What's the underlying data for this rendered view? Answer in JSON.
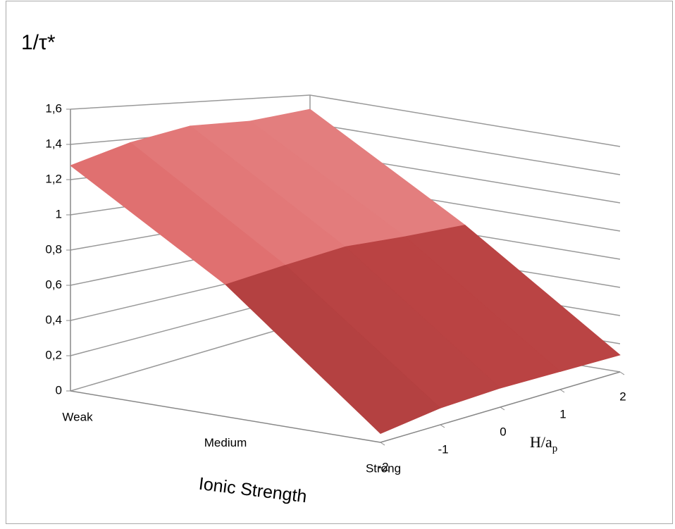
{
  "chart_data": {
    "type": "surface3d",
    "title": "1/τ*",
    "x_label": "Ionic Strength",
    "depth_label": "H/a",
    "depth_label_sub": "p",
    "categories": [
      "Weak",
      "Medium",
      "Strong"
    ],
    "depth_categories": [
      -2,
      -1,
      0,
      1,
      2
    ],
    "z": [
      [
        1.28,
        0.75,
        0.05
      ],
      [
        1.38,
        0.8,
        0.1
      ],
      [
        1.45,
        0.85,
        0.12
      ],
      [
        1.45,
        0.85,
        0.12
      ],
      [
        1.5,
        0.86,
        0.12
      ]
    ],
    "zlim": [
      0,
      1.6
    ],
    "zticks": [
      0,
      {
        "value": 0.2,
        "label": "0,2"
      },
      {
        "value": 0.4,
        "label": "0,4"
      },
      {
        "value": 0.6,
        "label": "0,6"
      },
      {
        "value": 0.8,
        "label": "0,8"
      },
      1,
      {
        "value": 1.2,
        "label": "1,2"
      },
      {
        "value": 1.4,
        "label": "1,4"
      },
      {
        "value": 1.6,
        "label": "1,6"
      }
    ],
    "color_low": "#8a3030",
    "color_mid": "#d95050",
    "color_high": "#efb5b5",
    "grid": true
  }
}
